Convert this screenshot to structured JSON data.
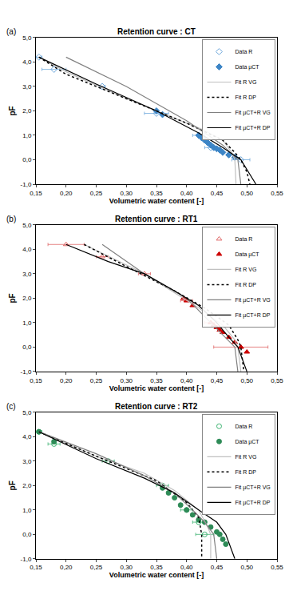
{
  "chart_data": [
    {
      "type": "scatter",
      "title": "Retention curve : CT",
      "annotations": [
        "(a)"
      ],
      "x_label": "Volumetric water content [-]",
      "y_label": "pF",
      "xlim": [
        0.15,
        0.55
      ],
      "ylim": [
        -1,
        5
      ],
      "xticks": [
        {
          "value": 0.15,
          "label": "0,15"
        },
        {
          "value": 0.2,
          "label": "0,20"
        },
        {
          "value": 0.25,
          "label": "0,25"
        },
        {
          "value": 0.3,
          "label": "0,30"
        },
        {
          "value": 0.35,
          "label": "0,35"
        },
        {
          "value": 0.4,
          "label": "0,40"
        },
        {
          "value": 0.45,
          "label": "0,45"
        },
        {
          "value": 0.5,
          "label": "0,50"
        },
        {
          "value": 0.55,
          "label": "0,55"
        }
      ],
      "yticks": [
        {
          "value": -1,
          "label": "-1,0"
        },
        {
          "value": 0,
          "label": "0,0"
        },
        {
          "value": 1,
          "label": "1,0"
        },
        {
          "value": 2,
          "label": "2,0"
        },
        {
          "value": 3,
          "label": "3,0"
        },
        {
          "value": 4,
          "label": "4,0"
        },
        {
          "value": 5,
          "label": "5,0"
        }
      ],
      "grid": false,
      "legend": "upper right",
      "series": [
        {
          "name": "Data R",
          "type": "scatter",
          "marker": "diamond-open",
          "color": "#6fa8dc",
          "x": [
            0.155,
            0.18,
            0.26,
            0.35,
            0.42,
            0.44,
            0.49
          ],
          "values": [
            4.2,
            3.7,
            3.0,
            1.9,
            1.0,
            0.5,
            0.0
          ],
          "x_error": [
            0.005,
            0.02,
            0.005,
            0.02,
            0.01,
            0.01,
            0.015
          ]
        },
        {
          "name": "Data µCT",
          "type": "scatter",
          "marker": "diamond",
          "color": "#3d85c6",
          "x": [
            0.35,
            0.36,
            0.42,
            0.425,
            0.43,
            0.435,
            0.44,
            0.445,
            0.45,
            0.455,
            0.46,
            0.47,
            0.48
          ],
          "values": [
            2.0,
            1.85,
            1.0,
            0.9,
            0.8,
            0.7,
            0.6,
            0.5,
            0.45,
            0.4,
            0.3,
            0.2,
            0.1
          ]
        },
        {
          "name": "Fit R VG",
          "type": "line",
          "line_style": "solid",
          "color": "#c0c0c0",
          "x": [
            0.155,
            0.2,
            0.3,
            0.38,
            0.43,
            0.46,
            0.475,
            0.48,
            0.482
          ],
          "values": [
            4.2,
            3.6,
            2.5,
            1.7,
            1.2,
            0.8,
            0.3,
            0.0,
            -1.0
          ]
        },
        {
          "name": "Fit R DP",
          "type": "line",
          "line_style": "dot",
          "color": "#000000",
          "x": [
            0.155,
            0.2,
            0.3,
            0.4,
            0.46,
            0.48,
            0.49,
            0.5,
            0.505
          ],
          "values": [
            4.2,
            3.5,
            2.5,
            1.5,
            0.8,
            0.3,
            0.0,
            -0.5,
            -1.0
          ]
        },
        {
          "name": "Fit µCT+R VG",
          "type": "line",
          "line_style": "solid",
          "color": "#808080",
          "x": [
            0.2,
            0.3,
            0.4,
            0.46,
            0.485,
            0.49
          ],
          "values": [
            4.2,
            3.0,
            1.6,
            0.6,
            0.0,
            -1.0
          ]
        },
        {
          "name": "Fit µCT+R DP",
          "type": "line",
          "line_style": "solid",
          "color": "#000000",
          "x": [
            0.155,
            0.25,
            0.35,
            0.42,
            0.46,
            0.49,
            0.515
          ],
          "values": [
            4.2,
            3.1,
            2.0,
            1.1,
            0.5,
            0.0,
            -1.0
          ]
        }
      ]
    },
    {
      "type": "scatter",
      "title": "Retention curve : RT1",
      "annotations": [
        "(b)"
      ],
      "x_label": "Volumetric water content [-]",
      "y_label": "pF",
      "xlim": [
        0.15,
        0.55
      ],
      "ylim": [
        -1,
        5
      ],
      "xticks": [
        {
          "value": 0.15,
          "label": "0,15"
        },
        {
          "value": 0.2,
          "label": "0,20"
        },
        {
          "value": 0.25,
          "label": "0,25"
        },
        {
          "value": 0.3,
          "label": "0,30"
        },
        {
          "value": 0.35,
          "label": "0,35"
        },
        {
          "value": 0.4,
          "label": "0,40"
        },
        {
          "value": 0.45,
          "label": "0,45"
        },
        {
          "value": 0.5,
          "label": "0,50"
        },
        {
          "value": 0.55,
          "label": "0,55"
        }
      ],
      "yticks": [
        {
          "value": -1,
          "label": "-1,0"
        },
        {
          "value": 0,
          "label": "0,0"
        },
        {
          "value": 1,
          "label": "1,0"
        },
        {
          "value": 2,
          "label": "2,0"
        },
        {
          "value": 3,
          "label": "3,0"
        },
        {
          "value": 4,
          "label": "4,0"
        },
        {
          "value": 5,
          "label": "5,0"
        }
      ],
      "grid": false,
      "legend": "upper right",
      "series": [
        {
          "name": "Data R",
          "type": "scatter",
          "marker": "triangle-up-open",
          "color": "#e06666",
          "x": [
            0.2,
            0.26,
            0.33,
            0.4,
            0.44,
            0.49
          ],
          "values": [
            4.2,
            3.7,
            3.0,
            1.9,
            1.0,
            0.0
          ],
          "x_error": [
            0.03,
            0.01,
            0.01,
            0.01,
            0.01,
            0.045
          ]
        },
        {
          "name": "Data µCT",
          "type": "scatter",
          "marker": "triangle-up",
          "color": "#cc0000",
          "x": [
            0.395,
            0.4,
            0.41,
            0.44,
            0.445,
            0.45,
            0.455,
            0.46,
            0.47,
            0.48,
            0.49,
            0.5
          ],
          "values": [
            2.0,
            1.9,
            1.7,
            1.0,
            0.9,
            0.8,
            0.7,
            0.6,
            0.4,
            0.2,
            0.0,
            -0.2
          ]
        },
        {
          "name": "Fit R VG",
          "type": "line",
          "line_style": "solid",
          "color": "#c0c0c0",
          "x": [
            0.23,
            0.33,
            0.42,
            0.46,
            0.48,
            0.485,
            0.49
          ],
          "values": [
            4.2,
            3.0,
            1.6,
            0.9,
            0.3,
            0.0,
            -1.0
          ]
        },
        {
          "name": "Fit R DP",
          "type": "line",
          "line_style": "dot",
          "color": "#000000",
          "x": [
            0.23,
            0.3,
            0.38,
            0.43,
            0.47,
            0.485,
            0.49,
            0.495
          ],
          "values": [
            4.2,
            3.3,
            2.3,
            1.6,
            0.9,
            0.3,
            0.0,
            -1.0
          ]
        },
        {
          "name": "Fit µCT+R VG",
          "type": "line",
          "line_style": "solid",
          "color": "#808080",
          "x": [
            0.26,
            0.33,
            0.4,
            0.44,
            0.48,
            0.485
          ],
          "values": [
            4.2,
            3.0,
            2.0,
            1.0,
            0.0,
            -1.0
          ]
        },
        {
          "name": "Fit µCT+R DP",
          "type": "line",
          "line_style": "solid",
          "color": "#000000",
          "x": [
            0.2,
            0.27,
            0.33,
            0.38,
            0.42,
            0.45,
            0.47,
            0.485,
            0.5
          ],
          "values": [
            4.2,
            3.5,
            3.0,
            2.3,
            1.7,
            1.0,
            0.4,
            0.0,
            -1.0
          ]
        }
      ]
    },
    {
      "type": "scatter",
      "title": "Retention curve : RT2",
      "annotations": [
        "(c)"
      ],
      "x_label": "Volumetric water content [-]",
      "y_label": "pF",
      "xlim": [
        0.15,
        0.55
      ],
      "ylim": [
        -1,
        5
      ],
      "xticks": [
        {
          "value": 0.15,
          "label": "0,15"
        },
        {
          "value": 0.2,
          "label": "0,20"
        },
        {
          "value": 0.25,
          "label": "0,25"
        },
        {
          "value": 0.3,
          "label": "0,30"
        },
        {
          "value": 0.35,
          "label": "0,35"
        },
        {
          "value": 0.4,
          "label": "0,40"
        },
        {
          "value": 0.45,
          "label": "0,45"
        },
        {
          "value": 0.5,
          "label": "0,50"
        },
        {
          "value": 0.55,
          "label": "0,55"
        }
      ],
      "yticks": [
        {
          "value": -1,
          "label": "-1,0"
        },
        {
          "value": 0,
          "label": "0,0"
        },
        {
          "value": 1,
          "label": "1,0"
        },
        {
          "value": 2,
          "label": "2,0"
        },
        {
          "value": 3,
          "label": "3,0"
        },
        {
          "value": 4,
          "label": "4,0"
        },
        {
          "value": 5,
          "label": "5,0"
        }
      ],
      "grid": false,
      "legend": "upper right",
      "series": [
        {
          "name": "Data R",
          "type": "scatter",
          "marker": "circle-open",
          "color": "#3cb371",
          "x": [
            0.155,
            0.18,
            0.27,
            0.36,
            0.4,
            0.42,
            0.43
          ],
          "values": [
            4.2,
            3.7,
            3.0,
            2.0,
            1.0,
            0.5,
            0.0
          ],
          "x_error": [
            0.005,
            0.01,
            0.01,
            0.01,
            0.01,
            0.01,
            0.015
          ]
        },
        {
          "name": "Data µCT",
          "type": "scatter",
          "marker": "circle",
          "color": "#2e8b57",
          "x": [
            0.155,
            0.18,
            0.36,
            0.37,
            0.38,
            0.39,
            0.4,
            0.41,
            0.42,
            0.43,
            0.44,
            0.45,
            0.455,
            0.46,
            0.465
          ],
          "values": [
            4.2,
            3.8,
            1.9,
            1.7,
            1.5,
            1.2,
            1.0,
            0.8,
            0.6,
            0.5,
            0.3,
            0.1,
            0.0,
            -0.2,
            -0.4
          ]
        },
        {
          "name": "Fit R VG",
          "type": "line",
          "line_style": "solid",
          "color": "#c0c0c0",
          "x": [
            0.155,
            0.25,
            0.33,
            0.38,
            0.42,
            0.435,
            0.44,
            0.44
          ],
          "values": [
            4.2,
            3.2,
            2.5,
            1.8,
            1.0,
            0.3,
            0.0,
            -1.0
          ]
        },
        {
          "name": "Fit R DP",
          "type": "line",
          "line_style": "dot",
          "color": "#000000",
          "x": [
            0.155,
            0.25,
            0.35,
            0.4,
            0.42,
            0.425,
            0.425
          ],
          "values": [
            4.2,
            3.2,
            2.2,
            1.3,
            0.7,
            0.0,
            -1.0
          ]
        },
        {
          "name": "Fit µCT+R VG",
          "type": "line",
          "line_style": "solid",
          "color": "#808080",
          "x": [
            0.155,
            0.25,
            0.33,
            0.38,
            0.41,
            0.43,
            0.445,
            0.45
          ],
          "values": [
            4.2,
            3.3,
            2.4,
            1.7,
            1.0,
            0.5,
            0.0,
            -1.0
          ]
        },
        {
          "name": "Fit µCT+R DP",
          "type": "line",
          "line_style": "solid",
          "color": "#000000",
          "x": [
            0.155,
            0.25,
            0.33,
            0.38,
            0.42,
            0.45,
            0.465,
            0.48
          ],
          "values": [
            4.2,
            3.1,
            2.3,
            1.7,
            1.0,
            0.5,
            0.0,
            -1.0
          ]
        }
      ]
    }
  ]
}
